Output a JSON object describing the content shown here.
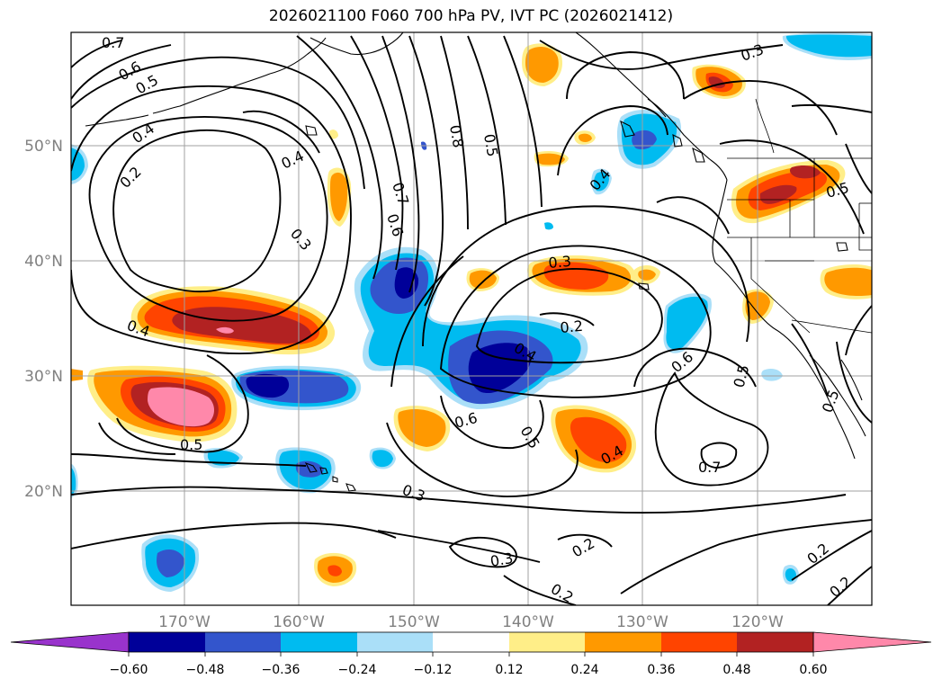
{
  "title": "2026021100 F060 700 hPa PV, IVT PC (2026021412)",
  "axes": {
    "lat_labels": [
      "50°N",
      "40°N",
      "30°N",
      "20°N"
    ],
    "lon_labels": [
      "170°W",
      "160°W",
      "150°W",
      "140°W",
      "130°W",
      "120°W"
    ]
  },
  "colorbar": {
    "ticks": [
      "−0.60",
      "−0.48",
      "−0.36",
      "−0.24",
      "−0.12",
      "0.12",
      "0.24",
      "0.36",
      "0.48",
      "0.60"
    ],
    "colors": [
      "#9933cc",
      "#000099",
      "#3355cc",
      "#00bbf0",
      "#aadff8",
      "#ffffff",
      "#ffee88",
      "#ff9900",
      "#ff4400",
      "#b22222",
      "#ff88aa"
    ]
  },
  "contour_labels": [
    {
      "text": "0.7"
    },
    {
      "text": "0.6"
    },
    {
      "text": "0.5"
    },
    {
      "text": "0.4"
    },
    {
      "text": "0.2"
    },
    {
      "text": "0.4"
    },
    {
      "text": "0.3"
    },
    {
      "text": "0.7"
    },
    {
      "text": "0.6"
    },
    {
      "text": "0.8"
    },
    {
      "text": "0.5"
    },
    {
      "text": "0.3"
    },
    {
      "text": "0.4"
    },
    {
      "text": "0.3"
    },
    {
      "text": "0.2"
    },
    {
      "text": "0.4"
    },
    {
      "text": "0.5"
    },
    {
      "text": "0.4"
    },
    {
      "text": "0.6"
    },
    {
      "text": "0.5"
    },
    {
      "text": "0.5"
    },
    {
      "text": "0.4"
    },
    {
      "text": "0.6"
    },
    {
      "text": "0.5"
    },
    {
      "text": "0.7"
    },
    {
      "text": "0.5"
    },
    {
      "text": "0.3"
    },
    {
      "text": "0.3"
    },
    {
      "text": "0.2"
    },
    {
      "text": "0.2"
    },
    {
      "text": "0.2"
    },
    {
      "text": "0.2"
    }
  ]
}
